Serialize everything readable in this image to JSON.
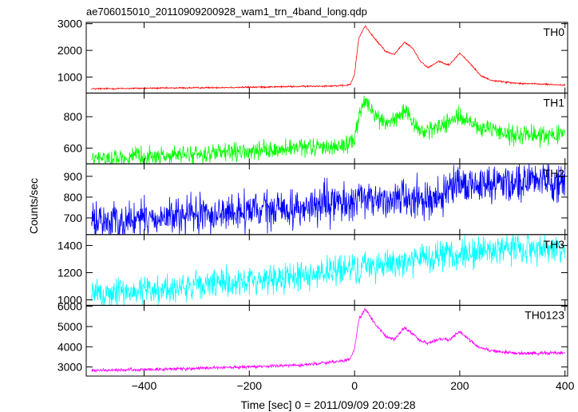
{
  "chart_data": {
    "type": "line",
    "title": "ae706015010_20110909200928_wam1_trn_4band_long.qdp",
    "xlabel": "Time [sec] 0 = 2011/09/09 20:09:28",
    "ylabel": "Counts/sec",
    "xlim": [
      -510,
      405
    ],
    "xticks": [
      -400,
      -200,
      0,
      200,
      400
    ],
    "xtick_labels": [
      "−400",
      "−200",
      "0",
      "200",
      "400"
    ],
    "panels": [
      {
        "name": "TH0",
        "color": "#ff0000",
        "ylim": [
          400,
          3050
        ],
        "yticks": [
          1000,
          2000,
          3000
        ],
        "noise": 15,
        "x": [
          -500,
          -400,
          -300,
          -200,
          -100,
          -20,
          -8,
          0,
          8,
          20,
          40,
          60,
          75,
          95,
          110,
          125,
          140,
          160,
          180,
          200,
          220,
          240,
          260,
          300,
          350,
          400
        ],
        "y": [
          560,
          580,
          600,
          620,
          650,
          680,
          720,
          1100,
          2450,
          2920,
          2400,
          1950,
          1850,
          2300,
          2100,
          1600,
          1350,
          1600,
          1450,
          1900,
          1500,
          1050,
          880,
          780,
          740,
          700
        ]
      },
      {
        "name": "TH1",
        "color": "#00ff00",
        "ylim": [
          500,
          950
        ],
        "yticks": [
          600,
          800
        ],
        "noise": 28,
        "x": [
          -500,
          -400,
          -300,
          -200,
          -100,
          -20,
          0,
          10,
          20,
          40,
          60,
          80,
          95,
          110,
          130,
          160,
          200,
          240,
          300,
          350,
          400
        ],
        "y": [
          530,
          545,
          560,
          575,
          600,
          615,
          650,
          830,
          900,
          800,
          760,
          790,
          830,
          760,
          700,
          740,
          800,
          720,
          690,
          685,
          680
        ]
      },
      {
        "name": "TH2",
        "color": "#0000ff",
        "ylim": [
          620,
          960
        ],
        "yticks": [
          700,
          800,
          900
        ],
        "noise": 45,
        "x": [
          -500,
          -400,
          -300,
          -200,
          -100,
          0,
          100,
          150,
          200,
          300,
          400
        ],
        "y": [
          680,
          695,
          712,
          730,
          748,
          780,
          800,
          790,
          850,
          880,
          880
        ]
      },
      {
        "name": "TH3",
        "color": "#00ffff",
        "ylim": [
          960,
          1480
        ],
        "yticks": [
          1000,
          1200,
          1400
        ],
        "noise": 55,
        "x": [
          -500,
          -400,
          -300,
          -200,
          -100,
          0,
          100,
          200,
          300,
          400
        ],
        "y": [
          1040,
          1070,
          1100,
          1140,
          1180,
          1230,
          1290,
          1330,
          1380,
          1380
        ]
      },
      {
        "name": "TH0123",
        "color": "#ff00ff",
        "ylim": [
          2550,
          6050
        ],
        "yticks": [
          3000,
          4000,
          5000,
          6000
        ],
        "noise": 40,
        "x": [
          -500,
          -400,
          -300,
          -200,
          -100,
          -20,
          -8,
          0,
          8,
          20,
          40,
          60,
          75,
          95,
          110,
          125,
          140,
          160,
          180,
          200,
          220,
          240,
          260,
          300,
          350,
          400
        ],
        "y": [
          2820,
          2870,
          2930,
          3000,
          3100,
          3300,
          3400,
          3900,
          5300,
          5880,
          5100,
          4500,
          4350,
          4950,
          4650,
          4300,
          4150,
          4400,
          4350,
          4750,
          4300,
          3950,
          3800,
          3700,
          3680,
          3680
        ]
      }
    ]
  }
}
